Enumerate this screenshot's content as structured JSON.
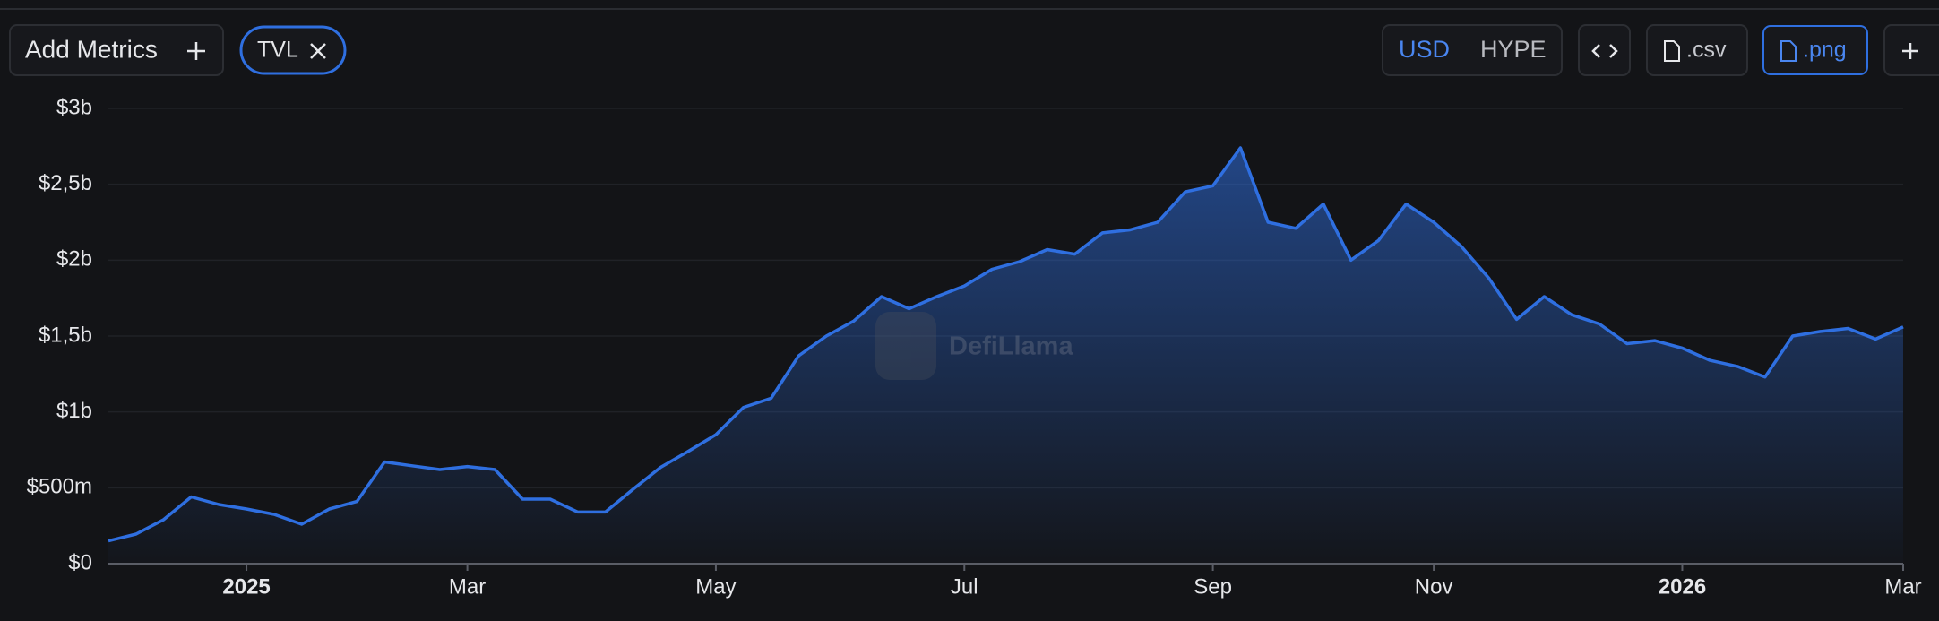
{
  "toolbar": {
    "add_metrics": "Add Metrics",
    "currencies": [
      "USD",
      "HYPE"
    ],
    "downloads": [
      ".csv",
      ".png"
    ]
  },
  "watermark": "DefiLlama",
  "chart_data": {
    "type": "area",
    "categories": [
      null,
      null,
      null,
      null,
      null,
      "2025",
      null,
      null,
      null,
      null,
      null,
      null,
      null,
      "Mar",
      null,
      null,
      null,
      null,
      null,
      null,
      null,
      null,
      "May",
      null,
      null,
      null,
      null,
      null,
      null,
      null,
      null,
      "Jul",
      null,
      null,
      null,
      null,
      null,
      null,
      null,
      null,
      "Sep",
      null,
      null,
      null,
      null,
      null,
      null,
      null,
      "Nov",
      null,
      null,
      null,
      null,
      null,
      null,
      null,
      null,
      "2026",
      null,
      null,
      null,
      null,
      null,
      null,
      null,
      "Mar"
    ],
    "series": [
      {
        "name": "TVL",
        "color": "#2f6fe0",
        "values": [
          150000000,
          195000000,
          290000000,
          440000000,
          390000000,
          360000000,
          325000000,
          260000000,
          360000000,
          410000000,
          670000000,
          645000000,
          620000000,
          640000000,
          620000000,
          425000000,
          425000000,
          340000000,
          340000000,
          490000000,
          635000000,
          740000000,
          850000000,
          1030000000,
          1090000000,
          1370000000,
          1500000000,
          1600000000,
          1760000000,
          1680000000,
          1760000000,
          1830000000,
          1940000000,
          1990000000,
          2070000000,
          2040000000,
          2180000000,
          2200000000,
          2250000000,
          2450000000,
          2490000000,
          2740000000,
          2250000000,
          2210000000,
          2370000000,
          2000000000,
          2130000000,
          2370000000,
          2250000000,
          2090000000,
          1880000000,
          1610000000,
          1760000000,
          1640000000,
          1580000000,
          1450000000,
          1470000000,
          1420000000,
          1340000000,
          1300000000,
          1230000000,
          1500000000,
          1530000000,
          1550000000,
          1480000000,
          1560000000
        ]
      }
    ],
    "ylim": [
      0,
      3000000000
    ],
    "yticks": [
      {
        "value": 0,
        "label": "$0"
      },
      {
        "value": 500000000,
        "label": "$500m"
      },
      {
        "value": 1000000000,
        "label": "$1b"
      },
      {
        "value": 1500000000,
        "label": "$1,5b"
      },
      {
        "value": 2000000000,
        "label": "$2b"
      },
      {
        "value": 2500000000,
        "label": "$2,5b"
      },
      {
        "value": 3000000000,
        "label": "$3b"
      }
    ],
    "grid": true
  }
}
